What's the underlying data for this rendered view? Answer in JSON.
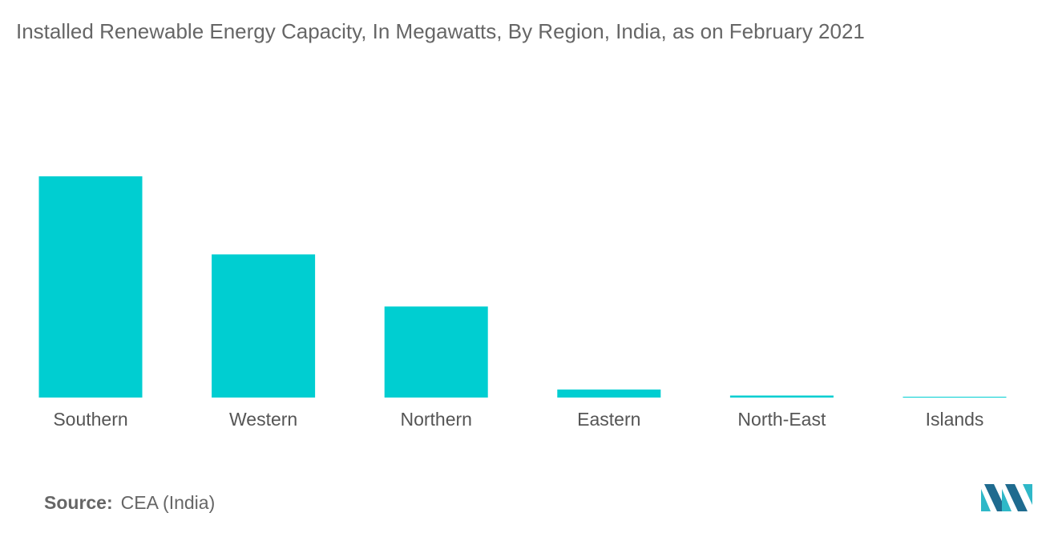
{
  "chart_data": {
    "type": "bar",
    "title": "Installed Renewable Energy Capacity, In Megawatts, By Region, India, as on February 2021",
    "categories": [
      "Southern",
      "Western",
      "Northern",
      "Eastern",
      "North-East",
      "Islands"
    ],
    "values": [
      44200,
      28600,
      18200,
      1600,
      400,
      40
    ],
    "xlabel": "",
    "ylabel": "",
    "ylim": [
      0,
      44200
    ],
    "grid": false,
    "legend": "none",
    "bar_color": "#00CED1"
  },
  "source": {
    "label": "Source:",
    "text": "CEA (India)"
  },
  "logo": {
    "icon": "mordor-intelligence-logo-icon",
    "colors": [
      "#1F6B8F",
      "#2FB8C8"
    ]
  }
}
